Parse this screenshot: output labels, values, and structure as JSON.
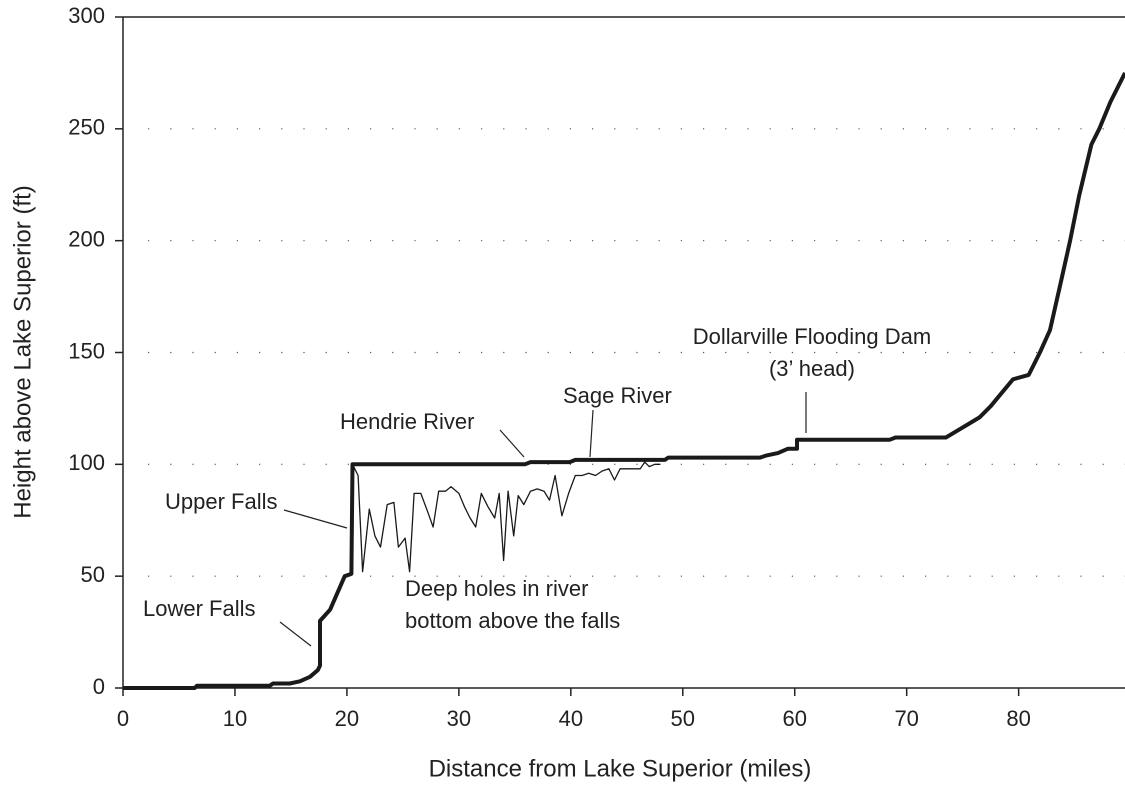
{
  "chart_data": {
    "type": "line",
    "xlabel": "Distance from Lake Superior (miles)",
    "ylabel": "Height above Lake Superior (ft)",
    "xlim": [
      0,
      89.5
    ],
    "ylim": [
      0,
      300
    ],
    "xticks": [
      0,
      10,
      20,
      30,
      40,
      50,
      60,
      70,
      80
    ],
    "yticks": [
      0,
      50,
      100,
      150,
      200,
      250,
      300
    ],
    "grid": true,
    "series": [
      {
        "color": "#1a1a1a",
        "x": [
          0,
          6.4,
          6.6,
          13.1,
          13.4,
          14.9,
          15.8,
          16.7,
          17.4,
          17.6,
          17.6,
          18.5,
          19.8,
          20.4,
          20.5,
          35.9,
          36.4,
          39.9,
          40.4,
          48.4,
          48.7,
          56.9,
          57.5,
          58.5,
          59.4,
          60.2,
          60.2,
          68.5,
          69,
          73.5,
          74.5,
          75.5,
          76.5,
          77.5,
          78.5,
          79.5,
          80.9,
          81.9,
          82.8,
          83.7,
          84.6,
          85.4,
          86.5,
          87.2,
          88.2,
          89.5
        ],
        "values": [
          0,
          0,
          1,
          1,
          2,
          2,
          3,
          5,
          8,
          10,
          30,
          35,
          50,
          51,
          100,
          100,
          101,
          101,
          102,
          102,
          103,
          103,
          104,
          105,
          107,
          107,
          111,
          111,
          112,
          112,
          115,
          118,
          121,
          126,
          132,
          138,
          140,
          150,
          160,
          180,
          200,
          220,
          243,
          250,
          262,
          275
        ]
      },
      {
        "color": "#1a1a1a",
        "x": [
          20.5,
          21,
          21.4,
          22,
          22.5,
          23,
          23.6,
          24.2,
          24.6,
          25.2,
          25.6,
          26,
          26.6,
          27.2,
          27.7,
          28.2,
          28.8,
          29.3,
          30,
          30.5,
          31,
          31.5,
          32,
          32.6,
          33.2,
          33.6,
          34,
          34.4,
          34.9,
          35.3,
          35.8,
          36.4,
          37,
          37.6,
          38.1,
          38.6,
          39.2,
          39.8,
          40.4,
          41,
          41.6,
          42.2,
          42.8,
          43.4,
          43.9,
          44.4,
          45,
          45.6,
          46.2,
          46.6,
          47,
          47.5,
          48
        ],
        "values": [
          100,
          95,
          52,
          80,
          68,
          63,
          82,
          83,
          63,
          67,
          52,
          87,
          87,
          79,
          72,
          88,
          88,
          90,
          87,
          81,
          76,
          72,
          87,
          81,
          76,
          87,
          57,
          88,
          68,
          86,
          82,
          88,
          89,
          88,
          84,
          95,
          77,
          87,
          95,
          95,
          96,
          95,
          97,
          98,
          93,
          98,
          98,
          98,
          98,
          101,
          99,
          100,
          100
        ]
      }
    ],
    "annotations": [
      {
        "text": [
          "Lower Falls"
        ]
      },
      {
        "text": [
          "Upper Falls"
        ]
      },
      {
        "text": [
          "Hendrie River"
        ]
      },
      {
        "text": [
          "Sage River"
        ]
      },
      {
        "text": [
          "Dollarville Flooding Dam",
          "(3’ head)"
        ]
      },
      {
        "text": [
          "Deep holes in river",
          "bottom above the falls"
        ]
      }
    ]
  }
}
